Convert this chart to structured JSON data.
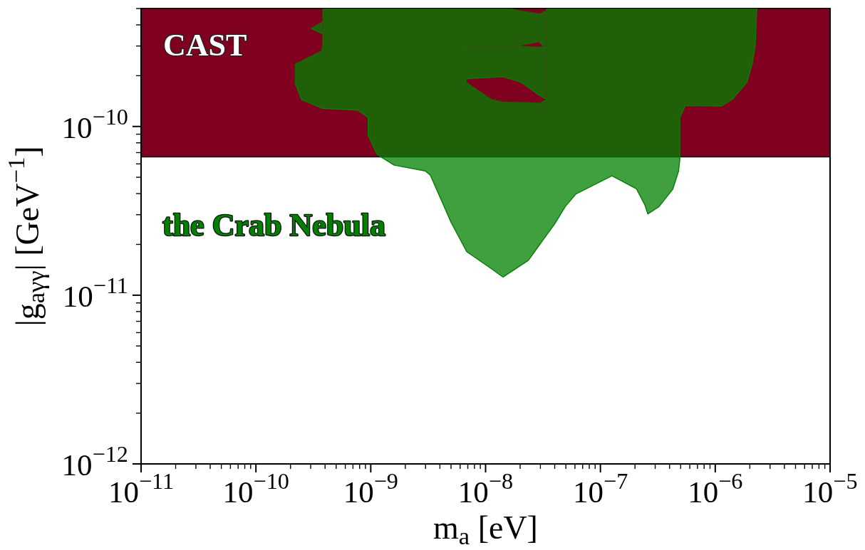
{
  "chart_data": {
    "type": "line",
    "xlabel": "m$_{a}$ [eV]",
    "ylabel": "|g$_{aγγ}$| [GeV$^{−1}$]",
    "log": "xy",
    "xlim": [
      1e-11,
      1e-05
    ],
    "ylim": [
      1e-12,
      5e-10
    ],
    "xticks": [
      {
        "value": 1e-11,
        "label": "10$^{−11}$"
      },
      {
        "value": 2e-11,
        "label": null
      },
      {
        "value": 3e-11,
        "label": null
      },
      {
        "value": 4e-11,
        "label": null
      },
      {
        "value": 5e-11,
        "label": null
      },
      {
        "value": 6e-11,
        "label": null
      },
      {
        "value": 7e-11,
        "label": null
      },
      {
        "value": 8e-11,
        "label": null
      },
      {
        "value": 9e-11,
        "label": null
      },
      {
        "value": 1e-10,
        "label": "10$^{−10}$"
      },
      {
        "value": 2e-10,
        "label": null
      },
      {
        "value": 3e-10,
        "label": null
      },
      {
        "value": 4e-10,
        "label": null
      },
      {
        "value": 5e-10,
        "label": null
      },
      {
        "value": 6e-10,
        "label": null
      },
      {
        "value": 7e-10,
        "label": null
      },
      {
        "value": 8e-10,
        "label": null
      },
      {
        "value": 9e-10,
        "label": null
      },
      {
        "value": 1e-09,
        "label": "10$^{−9}$"
      },
      {
        "value": 2e-09,
        "label": null
      },
      {
        "value": 3e-09,
        "label": null
      },
      {
        "value": 4e-09,
        "label": null
      },
      {
        "value": 5e-09,
        "label": null
      },
      {
        "value": 6e-09,
        "label": null
      },
      {
        "value": 7e-09,
        "label": null
      },
      {
        "value": 8e-09,
        "label": null
      },
      {
        "value": 9e-09,
        "label": null
      },
      {
        "value": 1e-08,
        "label": "10$^{−8}$"
      },
      {
        "value": 2e-08,
        "label": null
      },
      {
        "value": 3e-08,
        "label": null
      },
      {
        "value": 4e-08,
        "label": null
      },
      {
        "value": 5e-08,
        "label": null
      },
      {
        "value": 6e-08,
        "label": null
      },
      {
        "value": 7e-08,
        "label": null
      },
      {
        "value": 8e-08,
        "label": null
      },
      {
        "value": 9e-08,
        "label": null
      },
      {
        "value": 1e-07,
        "label": "10$^{−7}$"
      },
      {
        "value": 2e-07,
        "label": null
      },
      {
        "value": 3e-07,
        "label": null
      },
      {
        "value": 4e-07,
        "label": null
      },
      {
        "value": 5e-07,
        "label": null
      },
      {
        "value": 6e-07,
        "label": null
      },
      {
        "value": 7e-07,
        "label": null
      },
      {
        "value": 8e-07,
        "label": null
      },
      {
        "value": 9e-07,
        "label": null
      },
      {
        "value": 1e-06,
        "label": "10$^{−6}$"
      },
      {
        "value": 2e-06,
        "label": null
      },
      {
        "value": 3e-06,
        "label": null
      },
      {
        "value": 4e-06,
        "label": null
      },
      {
        "value": 5e-06,
        "label": null
      },
      {
        "value": 6e-06,
        "label": null
      },
      {
        "value": 7e-06,
        "label": null
      },
      {
        "value": 8e-06,
        "label": null
      },
      {
        "value": 9e-06,
        "label": null
      },
      {
        "value": 1e-05,
        "label": "10$^{−5}$"
      }
    ],
    "yticks": [
      {
        "value": 1e-12,
        "label": "10$^{−12}$"
      },
      {
        "value": 2e-12,
        "label": null
      },
      {
        "value": 3e-12,
        "label": null
      },
      {
        "value": 4e-12,
        "label": null
      },
      {
        "value": 5e-12,
        "label": null
      },
      {
        "value": 6e-12,
        "label": null
      },
      {
        "value": 7e-12,
        "label": null
      },
      {
        "value": 8e-12,
        "label": null
      },
      {
        "value": 9e-12,
        "label": null
      },
      {
        "value": 1e-11,
        "label": "10$^{−11}$"
      },
      {
        "value": 2e-11,
        "label": null
      },
      {
        "value": 3e-11,
        "label": null
      },
      {
        "value": 4e-11,
        "label": null
      },
      {
        "value": 5e-11,
        "label": null
      },
      {
        "value": 6e-11,
        "label": null
      },
      {
        "value": 7e-11,
        "label": null
      },
      {
        "value": 8e-11,
        "label": null
      },
      {
        "value": 9e-11,
        "label": null
      },
      {
        "value": 1e-10,
        "label": "10$^{−10}$"
      },
      {
        "value": 2e-10,
        "label": null
      },
      {
        "value": 3e-10,
        "label": null
      },
      {
        "value": 4e-10,
        "label": null
      },
      {
        "value": 5e-10,
        "label": null
      }
    ],
    "bands": [
      {
        "axis": "y",
        "from": 6.6e-11,
        "to": 5e-10,
        "label": "CAST",
        "color": "#800020"
      }
    ],
    "series": [
      {
        "name": "the Crab Nebula",
        "color": "#008000",
        "x": [
          2.18e-10,
          2.5e-10,
          3e-10,
          3.7e-10,
          3.79e-10,
          3.79e-10,
          7.73e-10,
          9.5e-10,
          9.5e-10,
          1.13e-09,
          1.23e-09,
          1.6e-09,
          2.98e-09,
          3.3e-09,
          5.02e-09,
          6.85e-09,
          6.85e-09,
          1.13e-08,
          1.42e-08,
          2.36e-08,
          2.95e-08,
          3.38e-08,
          3.38e-08,
          3.99e-08,
          4.94e-08,
          6.12e-08,
          1.26e-07,
          2.06e-07,
          2.44e-07,
          2.59e-07,
          3.24e-07,
          4.27e-07,
          4.79e-07,
          4.91e-07,
          4.91e-07,
          5.48e-07,
          1.13e-06,
          1.41e-06,
          1.89e-06,
          2.11e-06,
          2.23e-06,
          2.27e-06,
          2.3e-06
        ],
        "values": [
          1.83e-10,
          1.44e-10,
          1.37e-10,
          1.29e-10,
          1.28e-10,
          1.28e-10,
          1.25e-10,
          1.13e-10,
          8.84e-11,
          6.87e-11,
          6.6e-11,
          5.9e-11,
          5.45e-11,
          5.15e-11,
          2.69e-11,
          1.81e-11,
          1.81e-11,
          1.43e-11,
          1.28e-11,
          1.61e-11,
          1.99e-11,
          2.26e-11,
          2.26e-11,
          2.64e-11,
          3.35e-11,
          3.98e-11,
          5.1e-11,
          4.27e-11,
          3.42e-11,
          3.03e-11,
          3.35e-11,
          4.25e-11,
          5.44e-11,
          6.33e-11,
          1.13e-10,
          1.33e-10,
          1.32e-10,
          1.45e-10,
          1.83e-10,
          2.39e-10,
          3.05e-10,
          4.08e-10,
          5e-10
        ],
        "lower": [
          1.83e-10,
          1.44e-10,
          1.37e-10,
          1.29e-10,
          1.28e-10,
          1.28e-10,
          1.25e-10,
          1.13e-10,
          8.84e-11,
          6.87e-11,
          6.6e-11,
          5.9e-11,
          5.45e-11,
          5.15e-11,
          2.69e-11,
          1.81e-11,
          1.81e-11,
          1.43e-11,
          1.28e-11,
          1.61e-11,
          1.99e-11,
          2.26e-11,
          2.26e-11,
          2.64e-11,
          3.35e-11,
          3.98e-11,
          5.1e-11,
          4.27e-11,
          3.42e-11,
          3.03e-11,
          3.35e-11,
          4.25e-11,
          5.44e-11,
          6.33e-11,
          1.13e-10,
          1.33e-10,
          1.32e-10,
          1.45e-10,
          1.83e-10,
          2.39e-10,
          3.05e-10,
          4.08e-10,
          5e-10
        ],
        "upper": [
          2.35e-10,
          2.46e-10,
          2.62e-10,
          2.81e-10,
          3.05e-10,
          5e-10,
          5e-10,
          5e-10,
          5e-10,
          5e-10,
          5e-10,
          5e-10,
          5e-10,
          5e-10,
          5e-10,
          5e-10,
          1.83e-10,
          1.45e-10,
          1.4e-10,
          1.39e-10,
          1.38e-10,
          1.45e-10,
          5e-10,
          5e-10,
          5e-10,
          5e-10,
          5e-10,
          5e-10,
          5e-10,
          5e-10,
          5e-10,
          5e-10,
          5e-10,
          5e-10,
          5e-10,
          5e-10,
          5e-10,
          5e-10,
          5e-10,
          5e-10,
          5e-10,
          5e-10,
          5e-10
        ]
      },
      {
        "color": "#008000",
        "x": [
          6.85e-09,
          1.42e-08,
          1.98e-08,
          2.03e-08,
          2.93e-08,
          3e-08,
          3.19e-08,
          3.38e-08
        ],
        "values": [
          1.92e-10,
          1.97e-10,
          1.84e-10,
          1.83e-10,
          1.53e-10,
          1.52e-10,
          1.48e-10,
          1.45e-10
        ],
        "lower": [
          1.92e-10,
          1.97e-10,
          1.84e-10,
          1.83e-10,
          1.53e-10,
          1.52e-10,
          1.48e-10,
          1.45e-10
        ],
        "upper": [
          3e-10,
          3e-10,
          3e-10,
          3e-10,
          2.97e-10,
          2.97e-10,
          3e-10,
          3e-10
        ]
      },
      {
        "color": "#008000",
        "x": [
          6.85e-09,
          1.68e-08,
          1.98e-08,
          2.95e-08,
          3.19e-08,
          3.34e-08,
          3.38e-08
        ],
        "values": [
          null,
          null,
          null,
          3.17e-10,
          3e-10,
          null,
          null
        ],
        "lower": [
          3e-10,
          3e-10,
          3e-10,
          3.17e-10,
          3e-10,
          3e-10,
          3e-10
        ],
        "upper": [
          5e-10,
          5e-10,
          4.88e-10,
          4.67e-10,
          4.8e-10,
          4.87e-10,
          5e-10
        ]
      },
      {
        "color": "#008000",
        "x": [
          3e-10,
          3.79e-10
        ],
        "values": [
          3.82e-10,
          3.55e-10
        ],
        "lower": [
          3.82e-10,
          3.55e-10
        ],
        "upper": [
          3.82e-10,
          4.19e-10
        ]
      }
    ]
  }
}
